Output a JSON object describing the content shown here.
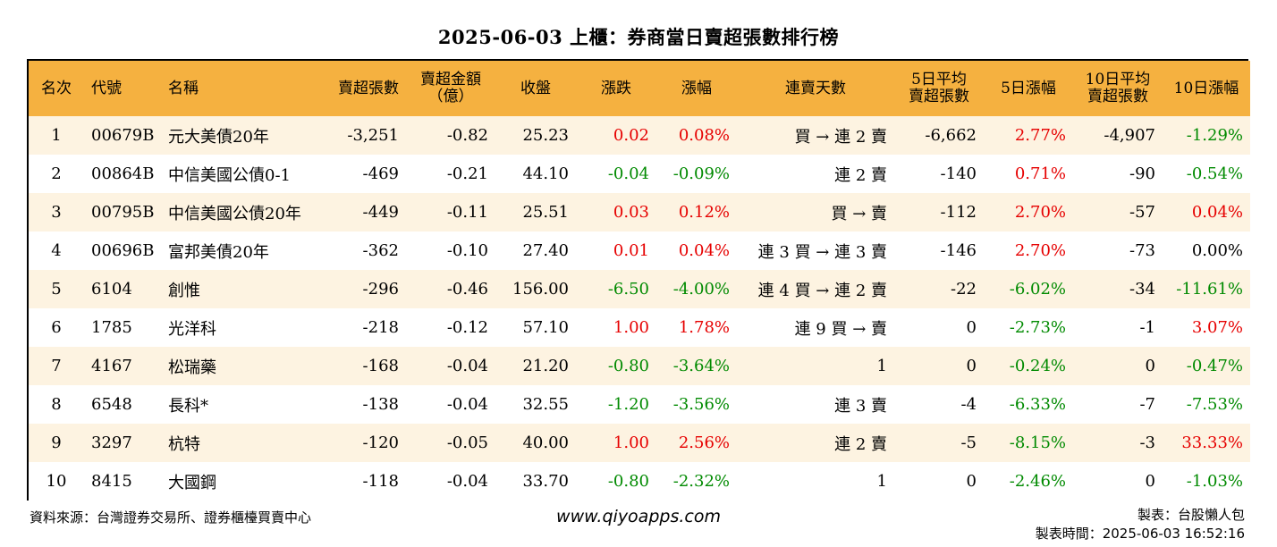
{
  "title": "2025-06-03 上櫃：券商當日賣超張數排行榜",
  "headers": {
    "rank": "名次",
    "code": "代號",
    "name": "名稱",
    "sell_lots": "賣超張數",
    "sell_amount_1": "賣超金額",
    "sell_amount_2": "（億）",
    "close": "收盤",
    "change": "漲跌",
    "pct": "漲幅",
    "streak": "連賣天數",
    "avg5_1": "5日平均",
    "avg5_2": "賣超張數",
    "pct5": "5日漲幅",
    "avg10_1": "10日平均",
    "avg10_2": "賣超張數",
    "pct10": "10日漲幅"
  },
  "colors": {
    "header_bg": "#f5b140",
    "stripe_bg": "#fdf3e1",
    "up": "#e60000",
    "down": "#008a00"
  },
  "rows": [
    {
      "rank": "1",
      "code": "00679B",
      "name": "元大美債20年",
      "sell_lots": "-3,251",
      "sell_amount": "-0.82",
      "close": "25.23",
      "change": "0.02",
      "change_dir": "up",
      "pct": "0.08%",
      "pct_dir": "up",
      "streak": "買 → 連 2 賣",
      "avg5": "-6,662",
      "pct5": "2.77%",
      "pct5_dir": "up",
      "avg10": "-4,907",
      "pct10": "-1.29%",
      "pct10_dir": "down"
    },
    {
      "rank": "2",
      "code": "00864B",
      "name": "中信美國公債0-1",
      "sell_lots": "-469",
      "sell_amount": "-0.21",
      "close": "44.10",
      "change": "-0.04",
      "change_dir": "down",
      "pct": "-0.09%",
      "pct_dir": "down",
      "streak": "連 2 賣",
      "avg5": "-140",
      "pct5": "0.71%",
      "pct5_dir": "up",
      "avg10": "-90",
      "pct10": "-0.54%",
      "pct10_dir": "down"
    },
    {
      "rank": "3",
      "code": "00795B",
      "name": "中信美國公債20年",
      "sell_lots": "-449",
      "sell_amount": "-0.11",
      "close": "25.51",
      "change": "0.03",
      "change_dir": "up",
      "pct": "0.12%",
      "pct_dir": "up",
      "streak": "買 → 賣",
      "avg5": "-112",
      "pct5": "2.70%",
      "pct5_dir": "up",
      "avg10": "-57",
      "pct10": "0.04%",
      "pct10_dir": "up"
    },
    {
      "rank": "4",
      "code": "00696B",
      "name": "富邦美債20年",
      "sell_lots": "-362",
      "sell_amount": "-0.10",
      "close": "27.40",
      "change": "0.01",
      "change_dir": "up",
      "pct": "0.04%",
      "pct_dir": "up",
      "streak": "連 3 買 → 連 3 賣",
      "avg5": "-146",
      "pct5": "2.70%",
      "pct5_dir": "up",
      "avg10": "-73",
      "pct10": "0.00%",
      "pct10_dir": "flat"
    },
    {
      "rank": "5",
      "code": "6104",
      "name": "創惟",
      "sell_lots": "-296",
      "sell_amount": "-0.46",
      "close": "156.00",
      "change": "-6.50",
      "change_dir": "down",
      "pct": "-4.00%",
      "pct_dir": "down",
      "streak": "連 4 買 → 連 2 賣",
      "avg5": "-22",
      "pct5": "-6.02%",
      "pct5_dir": "down",
      "avg10": "-34",
      "pct10": "-11.61%",
      "pct10_dir": "down"
    },
    {
      "rank": "6",
      "code": "1785",
      "name": "光洋科",
      "sell_lots": "-218",
      "sell_amount": "-0.12",
      "close": "57.10",
      "change": "1.00",
      "change_dir": "up",
      "pct": "1.78%",
      "pct_dir": "up",
      "streak": "連 9 買 → 賣",
      "avg5": "0",
      "pct5": "-2.73%",
      "pct5_dir": "down",
      "avg10": "-1",
      "pct10": "3.07%",
      "pct10_dir": "up"
    },
    {
      "rank": "7",
      "code": "4167",
      "name": "松瑞藥",
      "sell_lots": "-168",
      "sell_amount": "-0.04",
      "close": "21.20",
      "change": "-0.80",
      "change_dir": "down",
      "pct": "-3.64%",
      "pct_dir": "down",
      "streak": "1",
      "avg5": "0",
      "pct5": "-0.24%",
      "pct5_dir": "down",
      "avg10": "0",
      "pct10": "-0.47%",
      "pct10_dir": "down"
    },
    {
      "rank": "8",
      "code": "6548",
      "name": "長科*",
      "sell_lots": "-138",
      "sell_amount": "-0.04",
      "close": "32.55",
      "change": "-1.20",
      "change_dir": "down",
      "pct": "-3.56%",
      "pct_dir": "down",
      "streak": "連 3 賣",
      "avg5": "-4",
      "pct5": "-6.33%",
      "pct5_dir": "down",
      "avg10": "-7",
      "pct10": "-7.53%",
      "pct10_dir": "down"
    },
    {
      "rank": "9",
      "code": "3297",
      "name": "杭特",
      "sell_lots": "-120",
      "sell_amount": "-0.05",
      "close": "40.00",
      "change": "1.00",
      "change_dir": "up",
      "pct": "2.56%",
      "pct_dir": "up",
      "streak": "連 2 賣",
      "avg5": "-5",
      "pct5": "-8.15%",
      "pct5_dir": "down",
      "avg10": "-3",
      "pct10": "33.33%",
      "pct10_dir": "up"
    },
    {
      "rank": "10",
      "code": "8415",
      "name": "大國鋼",
      "sell_lots": "-118",
      "sell_amount": "-0.04",
      "close": "33.70",
      "change": "-0.80",
      "change_dir": "down",
      "pct": "-2.32%",
      "pct_dir": "down",
      "streak": "1",
      "avg5": "0",
      "pct5": "-2.46%",
      "pct5_dir": "down",
      "avg10": "0",
      "pct10": "-1.03%",
      "pct10_dir": "down"
    }
  ],
  "footer": {
    "source": "資料來源：台灣證券交易所、證券櫃檯買賣中心",
    "website": "www.qiyoapps.com",
    "maker": "製表：台股懶人包",
    "time": "製表時間：2025-06-03 16:52:16"
  }
}
